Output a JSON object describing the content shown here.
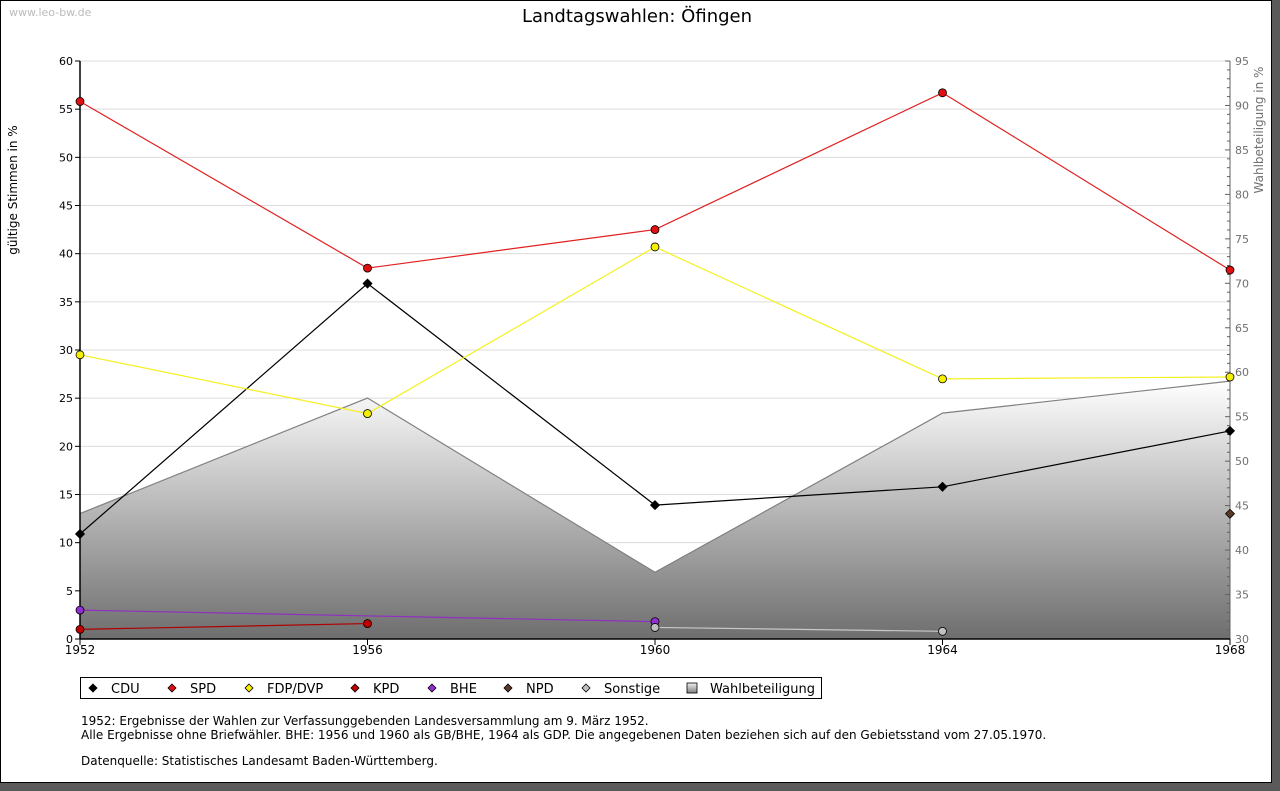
{
  "watermark": "www.leo-bw.de",
  "chart_data": {
    "type": "line",
    "title": "Landtagswahlen: Öfingen",
    "ylabel": "gültige Stimmen in %",
    "y2label": "Wahlbeteiligung in %",
    "x": [
      1952,
      1956,
      1960,
      1964,
      1968
    ],
    "xticks": [
      "1952",
      "1956",
      "1960",
      "1964",
      "1968"
    ],
    "ylim": [
      0,
      60
    ],
    "yticks": [
      0,
      5,
      10,
      15,
      20,
      25,
      30,
      35,
      40,
      45,
      50,
      55,
      60
    ],
    "y2lim": [
      30,
      95
    ],
    "y2ticks": [
      30,
      35,
      40,
      45,
      50,
      55,
      60,
      65,
      70,
      75,
      80,
      85,
      90,
      95
    ],
    "grid": true,
    "legend_position": "bottom-left",
    "area_series": {
      "name": "Wahlbeteiligung",
      "axis": "right",
      "values": [
        44.1,
        57.1,
        37.5,
        55.4,
        59.0
      ]
    },
    "series": [
      {
        "name": "CDU",
        "color": "#000000",
        "marker": "#000000",
        "values": [
          10.9,
          36.9,
          13.9,
          15.8,
          21.6
        ]
      },
      {
        "name": "SPD",
        "color": "#e02020",
        "marker": "#e01010",
        "values": [
          55.8,
          38.5,
          42.5,
          56.7,
          38.3
        ]
      },
      {
        "name": "FDP/DVP",
        "color": "#f5f020",
        "marker": "#f5f000",
        "values": [
          29.5,
          23.4,
          40.7,
          27.0,
          27.2
        ]
      },
      {
        "name": "KPD",
        "color": "#b00000",
        "marker": "#c00000",
        "values": [
          1.0,
          1.6,
          null,
          null,
          null
        ]
      },
      {
        "name": "BHE",
        "color": "#9030c0",
        "marker": "#9030d0",
        "values": [
          3.0,
          null,
          1.8,
          null,
          null
        ]
      },
      {
        "name": "NPD",
        "color": "#5a3a28",
        "marker": "#5a3a28",
        "values": [
          null,
          null,
          null,
          null,
          13.0
        ]
      },
      {
        "name": "Sonstige",
        "color": "#c8c8c8",
        "marker": "#c0c0c0",
        "values": [
          null,
          null,
          1.2,
          0.8,
          null
        ]
      }
    ],
    "legend": [
      "CDU",
      "SPD",
      "FDP/DVP",
      "KPD",
      "BHE",
      "NPD",
      "Sonstige",
      "Wahlbeteiligung"
    ]
  },
  "notes": {
    "line1": "1952: Ergebnisse der Wahlen zur Verfassunggebenden Landesversammlung am 9. März 1952.",
    "line2": "Alle Ergebnisse ohne Briefwähler. BHE: 1956 und 1960 als GB/BHE, 1964 als GDP. Die angegebenen Daten beziehen sich auf den Gebietsstand vom 27.05.1970.",
    "line3": "Datenquelle: Statistisches Landesamt Baden-Württemberg."
  }
}
